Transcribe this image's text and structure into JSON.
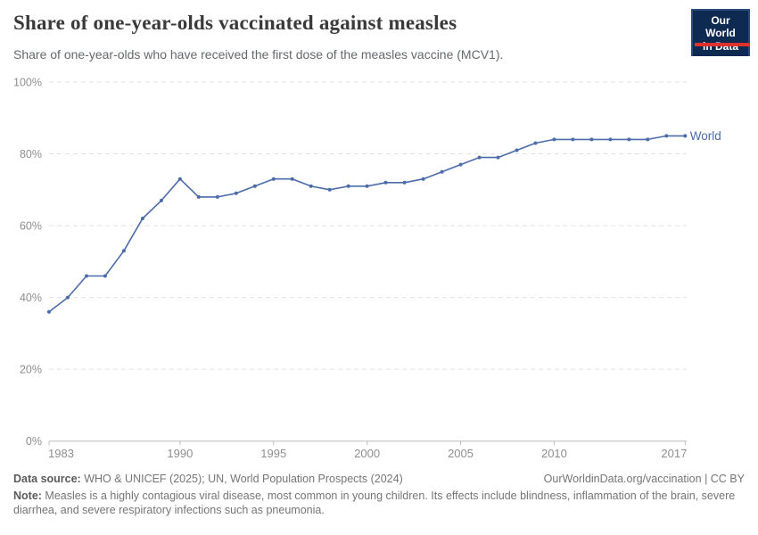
{
  "header": {
    "title": "Share of one-year-olds vaccinated against measles",
    "subtitle": "Share of one-year-olds who have received the first dose of the measles vaccine (MCV1).",
    "logo": {
      "line1": "Our World",
      "line2": "in Data"
    }
  },
  "chart_data": {
    "type": "line",
    "title": "Share of one-year-olds vaccinated against measles",
    "x": [
      1983,
      1984,
      1985,
      1986,
      1987,
      1988,
      1989,
      1990,
      1991,
      1992,
      1993,
      1994,
      1995,
      1996,
      1997,
      1998,
      1999,
      2000,
      2001,
      2002,
      2003,
      2004,
      2005,
      2006,
      2007,
      2008,
      2009,
      2010,
      2011,
      2012,
      2013,
      2014,
      2015,
      2016,
      2017
    ],
    "series": [
      {
        "name": "World",
        "color": "#4c6ba9",
        "values": [
          36,
          40,
          46,
          46,
          53,
          62,
          67,
          73,
          68,
          68,
          69,
          71,
          73,
          73,
          71,
          70,
          71,
          71,
          72,
          72,
          73,
          75,
          77,
          79,
          79,
          81,
          83,
          84,
          84,
          84,
          84,
          84,
          84,
          85,
          85
        ]
      }
    ],
    "x_ticks": [
      {
        "value": 1983,
        "label": "1983"
      },
      {
        "value": 1990,
        "label": "1990"
      },
      {
        "value": 1995,
        "label": "1995"
      },
      {
        "value": 2000,
        "label": "2000"
      },
      {
        "value": 2005,
        "label": "2005"
      },
      {
        "value": 2010,
        "label": "2010"
      },
      {
        "value": 2017,
        "label": "2017"
      }
    ],
    "y_ticks": [
      {
        "value": 0,
        "label": "0%"
      },
      {
        "value": 20,
        "label": "20%"
      },
      {
        "value": 40,
        "label": "40%"
      },
      {
        "value": 60,
        "label": "60%"
      },
      {
        "value": 80,
        "label": "80%"
      },
      {
        "value": 100,
        "label": "100%"
      }
    ],
    "xlim": [
      1983,
      2017
    ],
    "ylim": [
      0,
      100
    ],
    "grid": "horizontal-dashed",
    "legend_position": "end-of-line",
    "end_label": "World",
    "colors": {
      "line": "#4c6ba9",
      "gridline": "#e2e2e2",
      "axis": "#bcbcbc",
      "tick_label": "#8e8e8e"
    }
  },
  "footer": {
    "source_label": "Data source:",
    "source_text": " WHO & UNICEF (2025); UN, World Population Prospects (2024)",
    "link_text": "OurWorldinData.org/vaccination | CC BY",
    "note_label": "Note:",
    "note_text": " Measles is a highly contagious viral disease, most common in young children. Its effects include blindness, inflammation of the brain, severe diarrhea, and severe respiratory infections such as pneumonia."
  }
}
